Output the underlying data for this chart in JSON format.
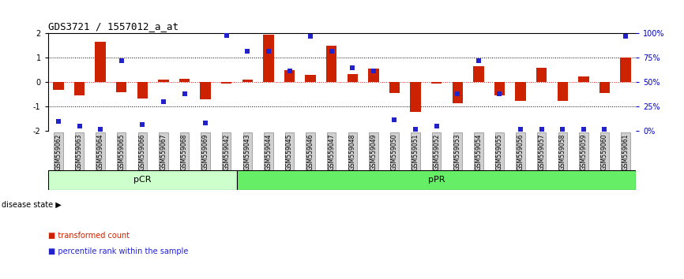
{
  "title": "GDS3721 / 1557012_a_at",
  "samples": [
    "GSM559062",
    "GSM559063",
    "GSM559064",
    "GSM559065",
    "GSM559066",
    "GSM559067",
    "GSM559068",
    "GSM559069",
    "GSM559042",
    "GSM559043",
    "GSM559044",
    "GSM559045",
    "GSM559046",
    "GSM559047",
    "GSM559048",
    "GSM559049",
    "GSM559050",
    "GSM559051",
    "GSM559052",
    "GSM559053",
    "GSM559054",
    "GSM559055",
    "GSM559056",
    "GSM559057",
    "GSM559058",
    "GSM559059",
    "GSM559060",
    "GSM559061"
  ],
  "bar_values": [
    -0.3,
    -0.55,
    1.65,
    -0.4,
    -0.65,
    0.1,
    0.15,
    -0.7,
    -0.05,
    0.1,
    1.95,
    0.5,
    0.3,
    1.5,
    0.35,
    0.55,
    -0.45,
    -1.2,
    -0.05,
    -0.85,
    0.65,
    -0.55,
    -0.75,
    0.6,
    -0.75,
    0.25,
    -0.45,
    1.0
  ],
  "dot_values": [
    10,
    5,
    2,
    72,
    7,
    30,
    38,
    8,
    98,
    82,
    82,
    62,
    97,
    82,
    65,
    62,
    12,
    2,
    5,
    38,
    72,
    38,
    2,
    2,
    2,
    2,
    2,
    97
  ],
  "bar_color": "#cc2200",
  "dot_color": "#2222cc",
  "ylim": [
    -2,
    2
  ],
  "yticks": [
    -2,
    -1,
    0,
    1,
    2
  ],
  "ytick_labels": [
    "-2",
    "-1",
    "0",
    "1",
    "2"
  ],
  "right_ytick_vals": [
    0,
    25,
    50,
    75,
    100
  ],
  "right_ytick_labels": [
    "0%",
    "25%",
    "50%",
    "75%",
    "100%"
  ],
  "pcr_count": 9,
  "ppr_count": 19,
  "pcr_label": "pCR",
  "ppr_label": "pPR",
  "pcr_color": "#ccffcc",
  "ppr_color": "#66ee66",
  "disease_state_label": "disease state",
  "legend_bar_label": "transformed count",
  "legend_dot_label": "percentile rank within the sample",
  "background_color": "#ffffff",
  "axis_label_color": "#0000cc",
  "xtick_bg_color": "#d0d0d0"
}
